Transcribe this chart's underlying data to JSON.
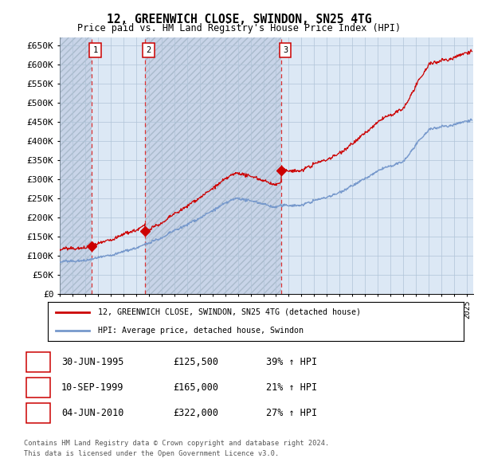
{
  "title1": "12, GREENWICH CLOSE, SWINDON, SN25 4TG",
  "title2": "Price paid vs. HM Land Registry's House Price Index (HPI)",
  "ylabel_ticks": [
    "£0",
    "£50K",
    "£100K",
    "£150K",
    "£200K",
    "£250K",
    "£300K",
    "£350K",
    "£400K",
    "£450K",
    "£500K",
    "£550K",
    "£600K",
    "£650K"
  ],
  "ytick_values": [
    0,
    50000,
    100000,
    150000,
    200000,
    250000,
    300000,
    350000,
    400000,
    450000,
    500000,
    550000,
    600000,
    650000
  ],
  "sale_dates": [
    "1995-06-30",
    "1999-09-10",
    "2010-06-04"
  ],
  "sale_prices": [
    125500,
    165000,
    322000
  ],
  "sale_labels": [
    "1",
    "2",
    "3"
  ],
  "legend_line1": "12, GREENWICH CLOSE, SWINDON, SN25 4TG (detached house)",
  "legend_line2": "HPI: Average price, detached house, Swindon",
  "table_data": [
    [
      "1",
      "30-JUN-1995",
      "£125,500",
      "39% ↑ HPI"
    ],
    [
      "2",
      "10-SEP-1999",
      "£165,000",
      "21% ↑ HPI"
    ],
    [
      "3",
      "04-JUN-2010",
      "£322,000",
      "27% ↑ HPI"
    ]
  ],
  "footer1": "Contains HM Land Registry data © Crown copyright and database right 2024.",
  "footer2": "This data is licensed under the Open Government Licence v3.0.",
  "line_color_red": "#cc0000",
  "line_color_blue": "#7799cc",
  "hatch_color": "#c8d4e8",
  "bg_color": "#dce8f5",
  "grid_color": "#b0c4d8",
  "dashed_line_color": "#dd3333",
  "xlim_start": 1993.0,
  "xlim_end": 2025.5,
  "ylim_min": 0,
  "ylim_max": 670000
}
